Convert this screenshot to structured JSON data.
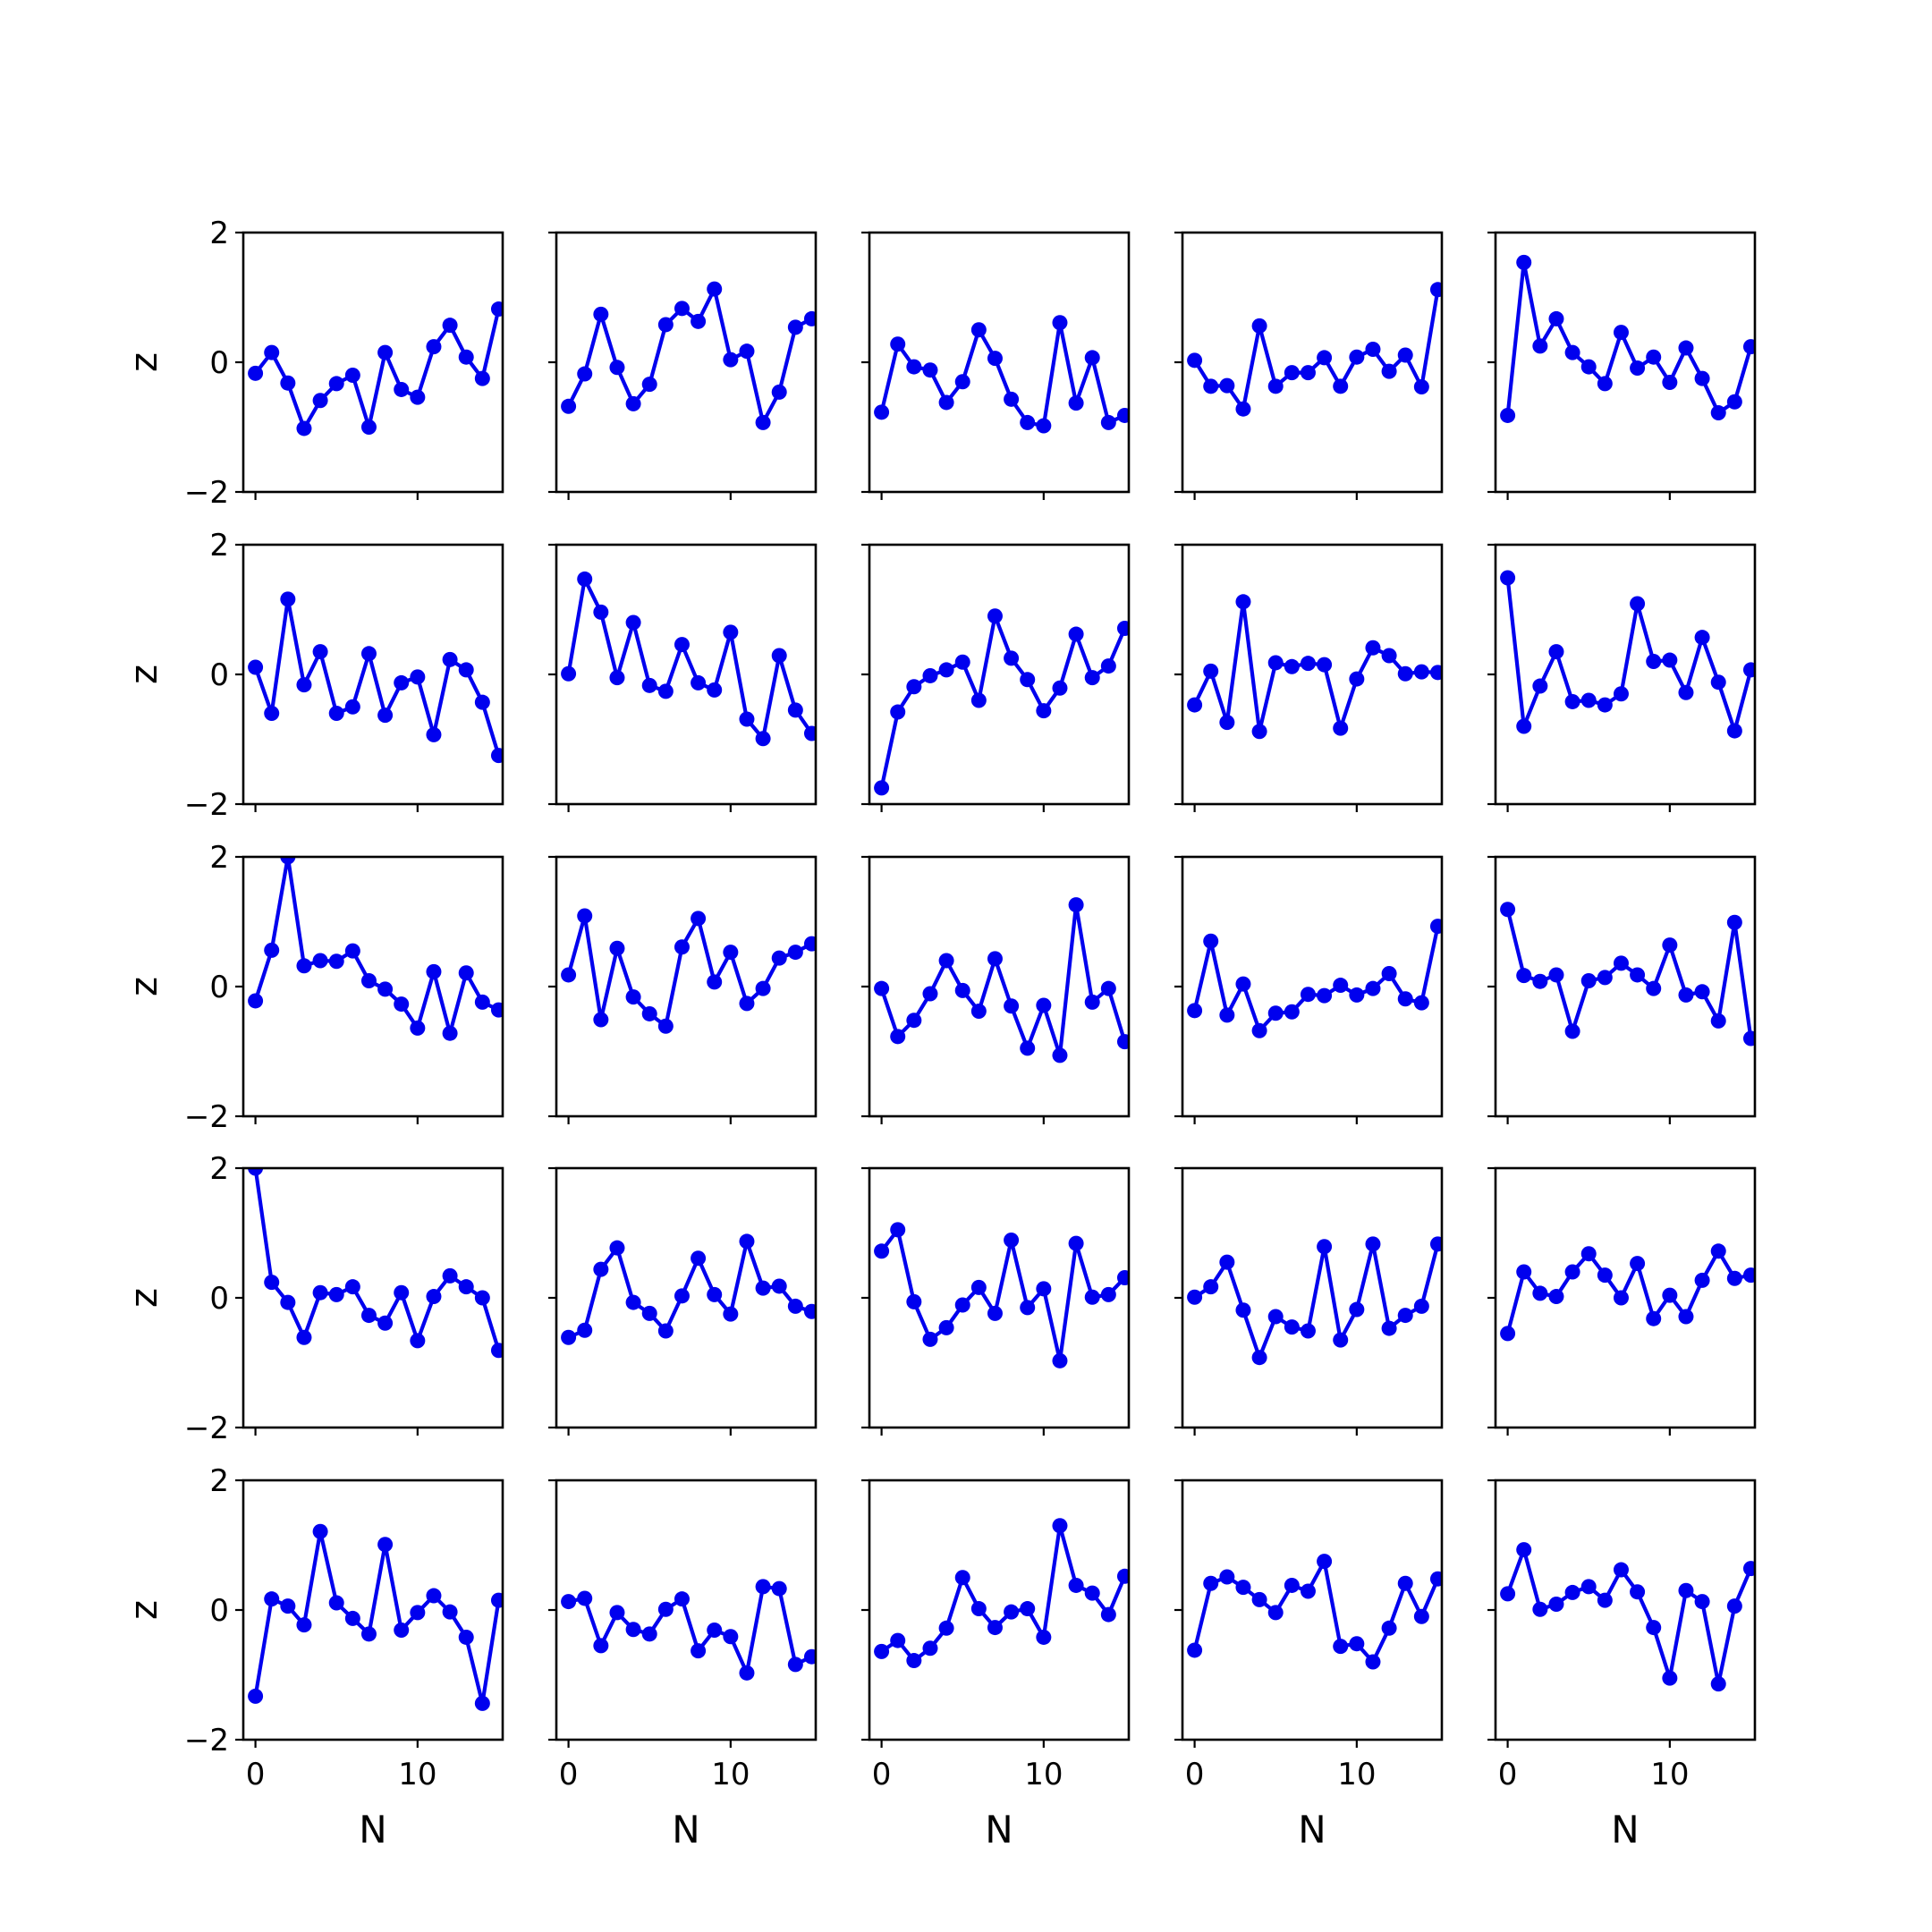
{
  "chart_data": {
    "type": "line",
    "layout": "5x5 grid of small multiples",
    "xlabel": "N",
    "ylabel": "z",
    "xlim": [
      -0.75,
      15.25
    ],
    "ylim": [
      -2,
      2
    ],
    "xticks": [
      0,
      10
    ],
    "yticks": [
      -2,
      0,
      2
    ],
    "x": [
      0,
      1,
      2,
      3,
      4,
      5,
      6,
      7,
      8,
      9,
      10,
      11,
      12,
      13,
      14,
      15
    ],
    "line_color": "#0000ee",
    "marker": "circle",
    "grid": false,
    "panels": [
      {
        "values": [
          -0.17,
          0.15,
          -0.32,
          -1.02,
          -0.59,
          -0.33,
          -0.2,
          -1.0,
          0.15,
          -0.42,
          -0.54,
          0.24,
          0.57,
          0.08,
          -0.25,
          0.82
        ]
      },
      {
        "values": [
          -0.68,
          -0.18,
          0.74,
          -0.08,
          -0.64,
          -0.34,
          0.58,
          0.83,
          0.63,
          1.13,
          0.04,
          0.17,
          -0.93,
          -0.46,
          0.54,
          0.67
        ]
      },
      {
        "values": [
          -0.77,
          0.28,
          -0.07,
          -0.12,
          -0.62,
          -0.3,
          0.5,
          0.06,
          -0.57,
          -0.93,
          -0.98,
          0.61,
          -0.63,
          0.07,
          -0.93,
          -0.82
        ]
      },
      {
        "values": [
          0.03,
          -0.37,
          -0.36,
          -0.72,
          0.56,
          -0.37,
          -0.16,
          -0.16,
          0.07,
          -0.37,
          0.08,
          0.2,
          -0.14,
          0.11,
          -0.38,
          1.12
        ]
      },
      {
        "values": [
          -0.82,
          1.54,
          0.25,
          0.67,
          0.15,
          -0.07,
          -0.33,
          0.46,
          -0.09,
          0.08,
          -0.31,
          0.22,
          -0.25,
          -0.78,
          -0.61,
          0.24
        ]
      },
      {
        "values": [
          0.11,
          -0.6,
          1.16,
          -0.16,
          0.35,
          -0.6,
          -0.5,
          0.32,
          -0.63,
          -0.13,
          -0.04,
          -0.93,
          0.23,
          0.07,
          -0.43,
          -1.25
        ]
      },
      {
        "values": [
          0.01,
          1.47,
          0.96,
          -0.05,
          0.8,
          -0.17,
          -0.26,
          0.46,
          -0.13,
          -0.24,
          0.65,
          -0.69,
          -0.99,
          0.29,
          -0.55,
          -0.91
        ]
      },
      {
        "values": [
          -1.75,
          -0.58,
          -0.19,
          -0.02,
          0.07,
          0.19,
          -0.4,
          0.9,
          0.25,
          -0.08,
          -0.56,
          -0.21,
          0.62,
          -0.05,
          0.13,
          0.71
        ]
      },
      {
        "values": [
          -0.47,
          0.05,
          -0.74,
          1.12,
          -0.88,
          0.18,
          0.12,
          0.17,
          0.15,
          -0.83,
          -0.07,
          0.41,
          0.29,
          0.01,
          0.04,
          0.03
        ]
      },
      {
        "values": [
          1.49,
          -0.8,
          -0.18,
          0.35,
          -0.42,
          -0.4,
          -0.47,
          -0.3,
          1.09,
          0.2,
          0.22,
          -0.28,
          0.57,
          -0.12,
          -0.87,
          0.07
        ]
      },
      {
        "values": [
          -0.22,
          0.56,
          2.0,
          0.32,
          0.4,
          0.39,
          0.55,
          0.09,
          -0.04,
          -0.27,
          -0.64,
          0.23,
          -0.72,
          0.21,
          -0.24,
          -0.36
        ]
      },
      {
        "values": [
          0.18,
          1.09,
          -0.51,
          0.59,
          -0.16,
          -0.42,
          -0.61,
          0.61,
          1.05,
          0.07,
          0.53,
          -0.26,
          -0.03,
          0.44,
          0.53,
          0.66
        ]
      },
      {
        "values": [
          -0.03,
          -0.77,
          -0.52,
          -0.11,
          0.4,
          -0.06,
          -0.38,
          0.43,
          -0.3,
          -0.95,
          -0.29,
          -1.06,
          1.26,
          -0.24,
          -0.03,
          -0.85
        ]
      },
      {
        "values": [
          -0.37,
          0.7,
          -0.44,
          0.04,
          -0.68,
          -0.41,
          -0.39,
          -0.12,
          -0.14,
          0.02,
          -0.13,
          -0.03,
          0.2,
          -0.19,
          -0.25,
          0.93
        ]
      },
      {
        "values": [
          1.19,
          0.17,
          0.08,
          0.18,
          -0.69,
          0.09,
          0.14,
          0.36,
          0.18,
          -0.03,
          0.64,
          -0.13,
          -0.08,
          -0.53,
          0.99,
          -0.8
        ]
      },
      {
        "values": [
          2.0,
          0.24,
          -0.07,
          -0.61,
          0.08,
          0.05,
          0.17,
          -0.27,
          -0.39,
          0.08,
          -0.66,
          0.02,
          0.34,
          0.17,
          -0.0,
          -0.81
        ]
      },
      {
        "values": [
          -0.61,
          -0.5,
          0.44,
          0.77,
          -0.07,
          -0.24,
          -0.51,
          0.03,
          0.61,
          0.05,
          -0.25,
          0.87,
          0.15,
          0.18,
          -0.13,
          -0.21
        ]
      },
      {
        "values": [
          0.72,
          1.05,
          -0.06,
          -0.64,
          -0.46,
          -0.11,
          0.16,
          -0.24,
          0.89,
          -0.15,
          0.14,
          -0.97,
          0.84,
          0.01,
          0.05,
          0.31
        ]
      },
      {
        "values": [
          0.01,
          0.17,
          0.55,
          -0.19,
          -0.92,
          -0.29,
          -0.45,
          -0.51,
          0.79,
          -0.65,
          -0.18,
          0.83,
          -0.47,
          -0.27,
          -0.13,
          0.83
        ]
      },
      {
        "values": [
          -0.55,
          0.4,
          0.07,
          0.02,
          0.4,
          0.68,
          0.35,
          -0.0,
          0.53,
          -0.32,
          0.04,
          -0.29,
          0.27,
          0.72,
          0.3,
          0.35
        ]
      },
      {
        "values": [
          -1.33,
          0.17,
          0.06,
          -0.23,
          1.21,
          0.11,
          -0.13,
          -0.37,
          1.01,
          -0.31,
          -0.04,
          0.22,
          -0.03,
          -0.42,
          -1.44,
          0.15
        ]
      },
      {
        "values": [
          0.13,
          0.18,
          -0.55,
          -0.04,
          -0.3,
          -0.37,
          0.01,
          0.17,
          -0.63,
          -0.31,
          -0.41,
          -0.97,
          0.36,
          0.33,
          -0.84,
          -0.72
        ]
      },
      {
        "values": [
          -0.64,
          -0.47,
          -0.78,
          -0.59,
          -0.28,
          0.5,
          0.02,
          -0.27,
          -0.03,
          0.02,
          -0.42,
          1.3,
          0.38,
          0.26,
          -0.07,
          0.52
        ]
      },
      {
        "values": [
          -0.62,
          0.41,
          0.51,
          0.35,
          0.16,
          -0.04,
          0.38,
          0.29,
          0.75,
          -0.56,
          -0.52,
          -0.8,
          -0.28,
          0.41,
          -0.1,
          0.48
        ]
      },
      {
        "values": [
          0.25,
          0.93,
          0.01,
          0.09,
          0.27,
          0.36,
          0.15,
          0.62,
          0.28,
          -0.27,
          -1.05,
          0.3,
          0.13,
          -1.14,
          0.06,
          0.64
        ]
      }
    ]
  }
}
